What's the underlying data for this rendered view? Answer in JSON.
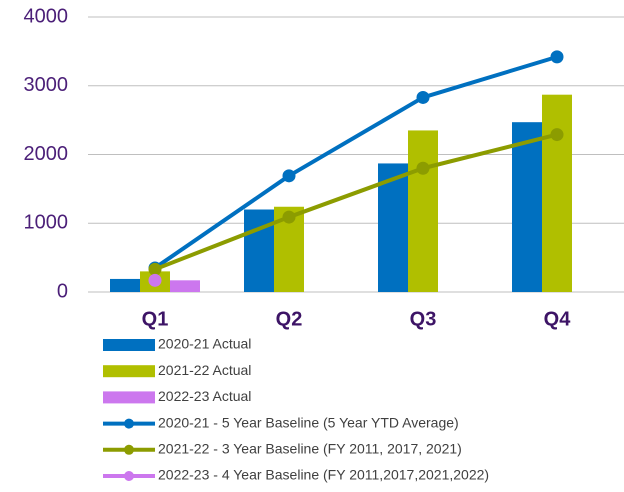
{
  "chart_data": {
    "type": "combo",
    "categories": [
      "Q1",
      "Q2",
      "Q3",
      "Q4"
    ],
    "ylim": [
      0,
      4000
    ],
    "yticks": [
      0,
      1000,
      2000,
      3000,
      4000
    ],
    "grid": true,
    "series": [
      {
        "name": "2020-21 Actual",
        "type": "bar",
        "color": "#0070c0",
        "values": [
          190,
          1200,
          1870,
          2470
        ]
      },
      {
        "name": "2021-22 Actual",
        "type": "bar",
        "color": "#b0bf00",
        "values": [
          300,
          1240,
          2350,
          2870
        ]
      },
      {
        "name": "2022-23 Actual",
        "type": "bar",
        "color": "#cc77ee",
        "values": [
          170,
          null,
          null,
          null
        ]
      },
      {
        "name": "2020-21 - 5 Year Baseline (5 Year YTD Average)",
        "type": "line",
        "color": "#0070c0",
        "values": [
          350,
          1690,
          2830,
          3420
        ]
      },
      {
        "name": "2021-22 - 3 Year Baseline (FY 2011, 2017, 2021)",
        "type": "line",
        "color": "#8c9c00",
        "values": [
          330,
          1090,
          1800,
          2290
        ]
      },
      {
        "name": "2022-23 - 4 Year Baseline (FY 2011,2017,2021,2022)",
        "type": "line",
        "color": "#cc77ee",
        "values": [
          170,
          null,
          null,
          null
        ]
      }
    ]
  }
}
